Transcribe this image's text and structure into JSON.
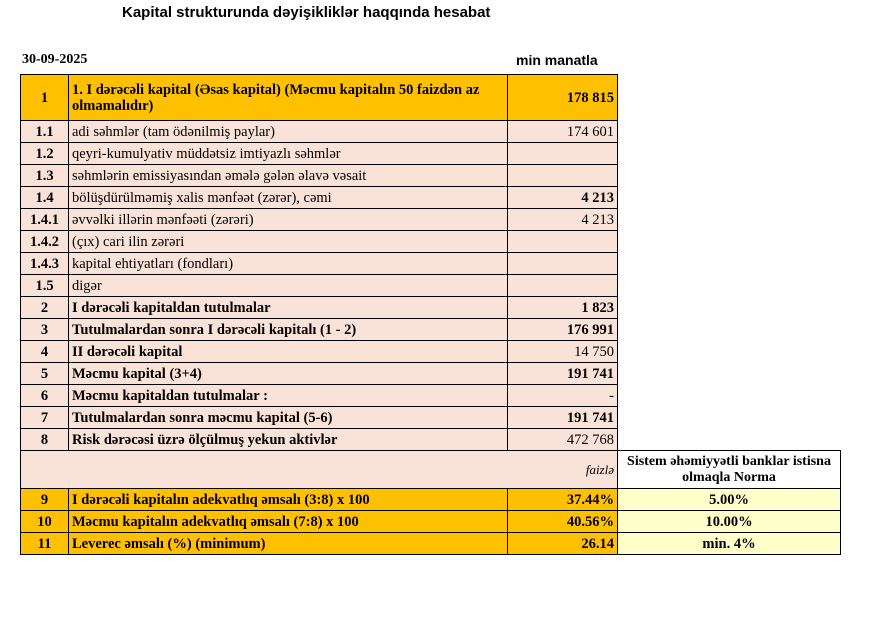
{
  "header": {
    "title": "Kapital strukturunda dəyişikliklər haqqında hesabat",
    "date": "30-09-2025",
    "unit": "min manatla"
  },
  "table": {
    "rows": [
      {
        "no": "1",
        "item": "1. I dərəcəli kapital (Əsas kapital) (Məcmu kapitalın 50 faizdən  az olmamalıdır)",
        "value": "178 815"
      },
      {
        "no": "1.1",
        "item": "adi səhmlər (tam ödənilmiş paylar)",
        "value": "174 601"
      },
      {
        "no": "1.2",
        "item": "qeyri-kumulyativ müddətsiz imtiyazlı səhmlər"
      },
      {
        "no": "1.3",
        "item": "səhmlərin emissiyasından əmələ gələn  əlavə vəsait"
      },
      {
        "no": "1.4",
        "item": "bölüşdürülməmiş xalis mənfəət (zərər), cəmi",
        "value": "4 213"
      },
      {
        "no": "1.4.1",
        "item": "əvvəlki illərin mənfəəti (zərəri)",
        "value": "4 213"
      },
      {
        "no": "1.4.2",
        "item": "(çıx) cari ilin zərəri"
      },
      {
        "no": "1.4.3",
        "item": "kapital ehtiyatları (fondları)"
      },
      {
        "no": "1.5",
        "item": "digər"
      },
      {
        "no": "2",
        "item": "I dərəcəli kapitaldan  tutulmalar",
        "value": "1 823"
      },
      {
        "no": "3",
        "item": "Tutulmalardan  sonra I dərəcəli kapitalı (1 - 2)",
        "value": "176 991"
      },
      {
        "no": "4",
        "item": "II dərəcəli  kapital",
        "value": "14 750"
      },
      {
        "no": "5",
        "item": "Məcmu kapital (3+4)",
        "value": "191 741"
      },
      {
        "no": "6",
        "item": "Məcmu kapitaldan tutulmalar :",
        "value": "-"
      },
      {
        "no": "7",
        "item": "Tutulmalardan sonra məcmu kapital (5-6)",
        "value": "191 741"
      },
      {
        "no": "8",
        "item": "Risk dərəcəsi üzrə ölçülmuş  yekun aktivlər",
        "value": "472 768"
      }
    ],
    "ratio_header": {
      "unit": "faizlə",
      "norm_title": "Sistem əhəmiyyətli banklar istisna olmaqla Norma"
    },
    "ratios": [
      {
        "no": "9",
        "item": "I dərəcəli  kapitalın  adekvatlıq əmsalı (3:8) x 100",
        "value": "37.44%",
        "norm": "5.00%"
      },
      {
        "no": "10",
        "item": "Məcmu kapitalın  adekvatlıq  əmsalı (7:8) x 100",
        "value": "40.56%",
        "norm": "10.00%"
      },
      {
        "no": "11",
        "item": " Leverec əmsalı (%) (minimum)",
        "value": "26.14",
        "norm": "min. 4%"
      }
    ]
  }
}
